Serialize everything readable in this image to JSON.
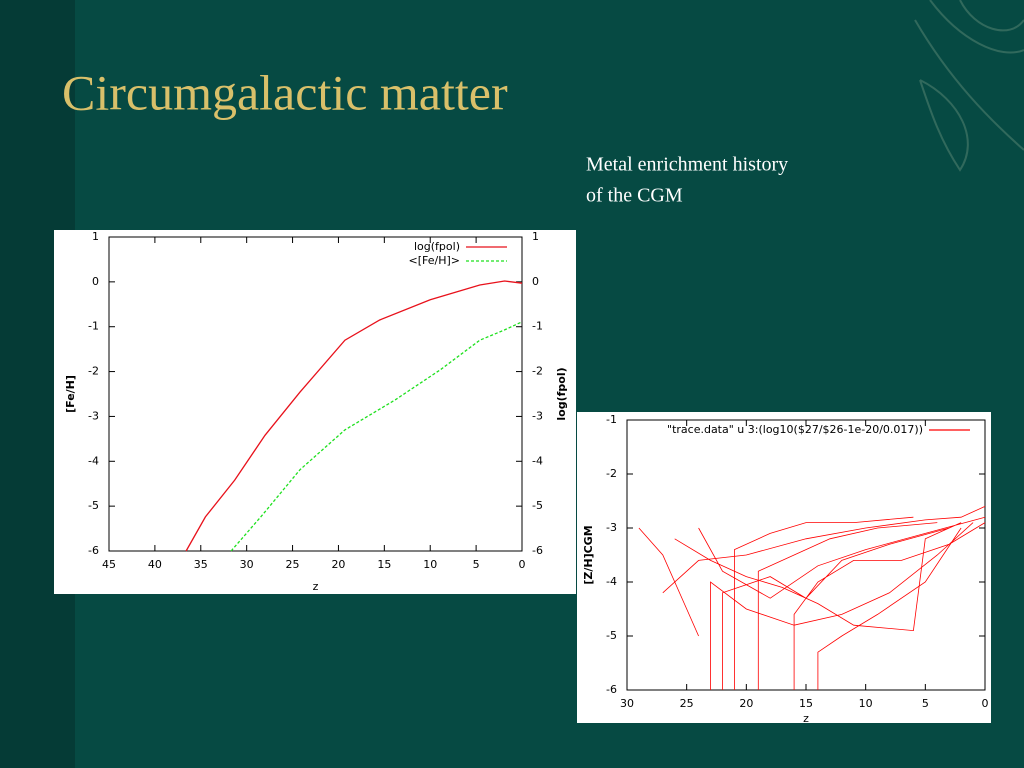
{
  "title": "Circumgalactic matter",
  "caption": [
    "Metal enrichment history",
    "of the CGM"
  ],
  "chart_data": [
    {
      "type": "line",
      "xlabel": "z",
      "ylabel": "[Fe/H]",
      "y2label": "log(fpol)",
      "xlim": [
        45,
        0
      ],
      "xticks": [
        45,
        40,
        35,
        30,
        25,
        20,
        15,
        10,
        5,
        0
      ],
      "ylim": [
        -6,
        1
      ],
      "yticks": [
        1,
        0,
        -1,
        -2,
        -3,
        -4,
        -5,
        -6
      ],
      "y2lim": [
        -6,
        1
      ],
      "y2ticks": [
        1,
        0,
        -1,
        -2,
        -3,
        -4,
        -5,
        -6
      ],
      "series": [
        {
          "name": "log(fpol)",
          "color": "#e8111b",
          "style": "solid",
          "axis": "y2",
          "x": [
            36.6,
            34.5,
            31.3,
            28.0,
            24.2,
            19.3,
            15.5,
            10.0,
            4.6,
            1.9,
            0
          ],
          "values": [
            -6,
            -5.24,
            -4.42,
            -3.42,
            -2.46,
            -1.3,
            -0.85,
            -0.4,
            -0.07,
            0.02,
            -0.03
          ]
        },
        {
          "name": "<[Fe/H]>",
          "color": "#1fe01f",
          "style": "dashed",
          "x": [
            31.7,
            28.3,
            24.2,
            19.3,
            13.8,
            8.9,
            4.6,
            1.9,
            0
          ],
          "values": [
            -6,
            -5.2,
            -4.19,
            -3.3,
            -2.63,
            -1.96,
            -1.3,
            -1.07,
            -0.89
          ]
        }
      ]
    },
    {
      "type": "line",
      "xlabel": "z",
      "ylabel": "[Z/H]CGM",
      "xlim": [
        30,
        0
      ],
      "xticks": [
        30,
        25,
        20,
        15,
        10,
        5,
        0
      ],
      "ylim": [
        -6,
        -1
      ],
      "yticks": [
        -1,
        -2,
        -3,
        -4,
        -5,
        -6
      ],
      "series": [
        {
          "name": "\"trace.data\" u 3:(log10($27/$26-1e-20/0.017))",
          "color": "#ff0000",
          "style": "thin",
          "x": [
            27,
            24,
            20,
            15,
            10,
            5,
            2,
            0,
            null,
            24,
            22,
            18,
            14,
            10,
            5,
            0,
            null,
            23,
            23,
            20,
            16,
            12,
            8,
            4,
            1,
            null,
            19,
            19,
            16,
            13,
            9,
            4,
            null,
            26,
            23,
            20,
            17,
            14,
            11,
            6,
            5,
            2,
            null,
            29,
            27,
            25,
            24,
            null,
            22,
            22,
            18,
            15,
            12,
            8,
            3,
            null,
            16,
            16,
            14,
            11,
            7,
            3,
            0,
            null,
            21,
            21,
            18,
            15,
            11,
            6,
            null,
            14,
            14,
            12,
            9,
            5,
            2
          ],
          "values": [
            -4.2,
            -3.6,
            -3.5,
            -3.2,
            -3.0,
            -2.85,
            -2.8,
            -2.6,
            null,
            -3.0,
            -3.8,
            -4.3,
            -3.7,
            -3.4,
            -3.1,
            -2.8,
            null,
            -6,
            -4.0,
            -4.5,
            -4.8,
            -4.6,
            -4.2,
            -3.5,
            -2.9,
            null,
            -6,
            -3.8,
            -3.5,
            -3.2,
            -3.0,
            -2.9,
            null,
            -3.2,
            -3.6,
            -3.9,
            -4.1,
            -4.4,
            -4.8,
            -4.9,
            -3.2,
            -2.9,
            null,
            -3.0,
            -3.5,
            -4.5,
            -5.0,
            null,
            -6,
            -4.2,
            -3.9,
            -4.3,
            -3.6,
            -3.3,
            -3.0,
            null,
            -6,
            -4.6,
            -4.0,
            -3.6,
            -3.6,
            -3.3,
            -2.9,
            null,
            -6,
            -3.4,
            -3.1,
            -2.9,
            -2.9,
            -2.8,
            null,
            -6,
            -5.3,
            -5.0,
            -4.6,
            -4.0,
            -3.0
          ]
        }
      ]
    }
  ]
}
